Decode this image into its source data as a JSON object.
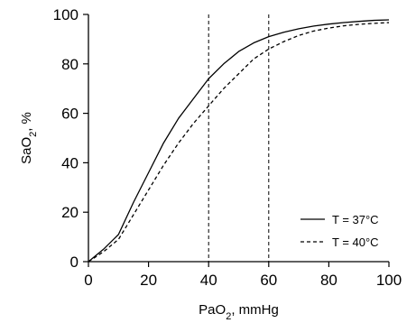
{
  "chart_data": {
    "type": "line",
    "xlabel": {
      "main": "PaO",
      "sub": "2",
      "rest": ", mmHg"
    },
    "ylabel": {
      "main": "SaO",
      "sub": "2",
      "rest": ", %"
    },
    "xlim": [
      0,
      100
    ],
    "ylim": [
      0,
      100
    ],
    "xticks": [
      "0",
      "20",
      "40",
      "60",
      "80",
      "100"
    ],
    "yticks": [
      "0",
      "20",
      "40",
      "60",
      "80",
      "100"
    ],
    "grid": false,
    "legend_position": "bottom-right",
    "reference_lines_x": [
      40,
      60
    ],
    "series": [
      {
        "name": "T = 37°C",
        "style": "solid",
        "x": [
          0,
          5,
          10,
          15,
          20,
          25,
          30,
          35,
          40,
          45,
          50,
          55,
          60,
          65,
          70,
          75,
          80,
          85,
          90,
          95,
          100
        ],
        "values": [
          0,
          5,
          11,
          24,
          36,
          48,
          58,
          66,
          74,
          80,
          85,
          88.5,
          91,
          92.8,
          94.2,
          95.3,
          96.1,
          96.7,
          97.2,
          97.6,
          97.8
        ]
      },
      {
        "name": "T = 40°C",
        "style": "dashed",
        "x": [
          0,
          5,
          10,
          15,
          20,
          25,
          30,
          35,
          40,
          45,
          50,
          55,
          60,
          65,
          70,
          75,
          80,
          85,
          90,
          95,
          100
        ],
        "values": [
          0,
          4,
          9,
          19,
          29,
          39,
          48,
          56,
          63,
          70,
          76,
          82,
          86,
          89,
          91.5,
          93.3,
          94.5,
          95.4,
          96,
          96.4,
          96.7
        ]
      }
    ]
  }
}
